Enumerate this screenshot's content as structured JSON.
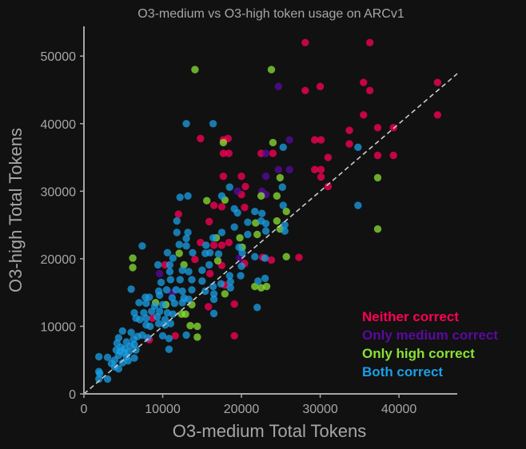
{
  "chart_data": {
    "type": "scatter",
    "title": "O3-medium vs O3-high token usage on ARCv1",
    "xlabel": "O3-medium Total Tokens",
    "ylabel": "O3-high Total Tokens",
    "xlim": [
      0,
      47400
    ],
    "ylim": [
      0,
      54400
    ],
    "xticks": [
      0,
      10000,
      20000,
      30000,
      40000
    ],
    "xtick_labels": [
      "0",
      "10000",
      "20000",
      "30000",
      "40000"
    ],
    "yticks": [
      0,
      10000,
      20000,
      30000,
      40000,
      50000
    ],
    "ytick_labels": [
      "0",
      "10000",
      "20000",
      "30000",
      "40000",
      "50000"
    ],
    "grid": false,
    "reference_line": {
      "type": "y=x",
      "style": "dashed",
      "color": "#cccccc"
    },
    "legend_position": "bottom-right",
    "series": [
      {
        "name": "Neither correct",
        "color": "#ff0055",
        "points": [
          [
            28100,
            52000
          ],
          [
            36300,
            52000
          ],
          [
            30000,
            45500
          ],
          [
            28100,
            44900
          ],
          [
            35500,
            46100
          ],
          [
            36300,
            44900
          ],
          [
            44900,
            46100
          ],
          [
            44900,
            41300
          ],
          [
            35500,
            41300
          ],
          [
            37300,
            39400
          ],
          [
            39300,
            39400
          ],
          [
            33700,
            39000
          ],
          [
            33700,
            37000
          ],
          [
            37300,
            35300
          ],
          [
            39300,
            35300
          ],
          [
            31000,
            35000
          ],
          [
            29300,
            37600
          ],
          [
            30100,
            37600
          ],
          [
            29300,
            33200
          ],
          [
            30100,
            33200
          ],
          [
            30100,
            32100
          ],
          [
            31000,
            30700
          ],
          [
            14800,
            37800
          ],
          [
            17700,
            37600
          ],
          [
            18300,
            37800
          ],
          [
            17700,
            35600
          ],
          [
            18400,
            35600
          ],
          [
            22500,
            35600
          ],
          [
            24000,
            35600
          ],
          [
            17700,
            32200
          ],
          [
            20000,
            32200
          ],
          [
            20500,
            30700
          ],
          [
            20000,
            29500
          ],
          [
            16500,
            27900
          ],
          [
            17500,
            27700
          ],
          [
            20400,
            27600
          ],
          [
            12000,
            26600
          ],
          [
            15900,
            25500
          ],
          [
            14800,
            22400
          ],
          [
            16500,
            22000
          ],
          [
            17500,
            22000
          ],
          [
            18400,
            22400
          ],
          [
            14100,
            19900
          ],
          [
            17500,
            19000
          ],
          [
            20400,
            19300
          ],
          [
            22700,
            20200
          ],
          [
            23800,
            19800
          ],
          [
            27300,
            20200
          ],
          [
            10300,
            19100
          ],
          [
            16000,
            17800
          ],
          [
            17900,
            16100
          ],
          [
            19100,
            13300
          ],
          [
            15800,
            12900
          ],
          [
            8700,
            11200
          ],
          [
            11600,
            8600
          ],
          [
            19100,
            8600
          ],
          [
            8300,
            8000
          ]
        ]
      },
      {
        "name": "Only medium correct",
        "color": "#5a0aa0",
        "points": [
          [
            24700,
            45500
          ],
          [
            26100,
            37600
          ],
          [
            23100,
            35600
          ],
          [
            24700,
            33200
          ],
          [
            26100,
            33200
          ],
          [
            23100,
            32200
          ],
          [
            22600,
            30000
          ],
          [
            23100,
            29500
          ],
          [
            19500,
            30000
          ],
          [
            19800,
            20100
          ],
          [
            9600,
            17800
          ],
          [
            11200,
            15000
          ]
        ]
      },
      {
        "name": "Only high correct",
        "color": "#8ae234",
        "points": [
          [
            14100,
            48000
          ],
          [
            23800,
            48000
          ],
          [
            17700,
            37200
          ],
          [
            24000,
            37200
          ],
          [
            24900,
            32000
          ],
          [
            37300,
            32000
          ],
          [
            24500,
            29300
          ],
          [
            22500,
            29300
          ],
          [
            17900,
            28700
          ],
          [
            15600,
            28600
          ],
          [
            25700,
            27000
          ],
          [
            24500,
            25600
          ],
          [
            21800,
            25300
          ],
          [
            24900,
            24400
          ],
          [
            37300,
            24400
          ],
          [
            19800,
            23100
          ],
          [
            16800,
            23100
          ],
          [
            22000,
            23600
          ],
          [
            25700,
            20300
          ],
          [
            6200,
            20100
          ],
          [
            6200,
            18700
          ],
          [
            12100,
            20800
          ],
          [
            17000,
            19700
          ],
          [
            21700,
            15900
          ],
          [
            22500,
            15700
          ],
          [
            23200,
            15900
          ],
          [
            17900,
            14800
          ],
          [
            13700,
            13200
          ],
          [
            10400,
            13200
          ],
          [
            12400,
            11800
          ],
          [
            12900,
            11800
          ],
          [
            13500,
            10100
          ],
          [
            14400,
            10000
          ],
          [
            14400,
            8400
          ],
          [
            9100,
            13500
          ],
          [
            12700,
            19100
          ],
          [
            20100,
            21700
          ]
        ]
      },
      {
        "name": "Both correct",
        "color": "#1a9fe6",
        "points": [
          [
            13000,
            40000
          ],
          [
            16400,
            40000
          ],
          [
            25300,
            36500
          ],
          [
            34800,
            36500
          ],
          [
            34800,
            27900
          ],
          [
            18500,
            30600
          ],
          [
            25200,
            30600
          ],
          [
            12200,
            29100
          ],
          [
            13200,
            29300
          ],
          [
            17500,
            29300
          ],
          [
            25300,
            27900
          ],
          [
            19100,
            27400
          ],
          [
            19500,
            26800
          ],
          [
            21700,
            27000
          ],
          [
            22600,
            26700
          ],
          [
            20800,
            25400
          ],
          [
            22500,
            25600
          ],
          [
            23100,
            25200
          ],
          [
            25500,
            25000
          ],
          [
            25500,
            24100
          ],
          [
            19100,
            24700
          ],
          [
            11800,
            25600
          ],
          [
            11800,
            23900
          ],
          [
            13200,
            23900
          ],
          [
            13000,
            23000
          ],
          [
            16400,
            23100
          ],
          [
            17500,
            23900
          ],
          [
            20800,
            23600
          ],
          [
            23100,
            24100
          ],
          [
            7400,
            21900
          ],
          [
            12100,
            22100
          ],
          [
            13000,
            21900
          ],
          [
            15500,
            22000
          ],
          [
            10600,
            20900
          ],
          [
            11300,
            20100
          ],
          [
            13800,
            20900
          ],
          [
            15400,
            20800
          ],
          [
            16000,
            20900
          ],
          [
            17100,
            20700
          ],
          [
            19700,
            21700
          ],
          [
            20100,
            20900
          ],
          [
            21700,
            20300
          ],
          [
            23000,
            20100
          ],
          [
            9400,
            19100
          ],
          [
            10900,
            19100
          ],
          [
            10900,
            18100
          ],
          [
            12500,
            18300
          ],
          [
            13300,
            18100
          ],
          [
            15000,
            18300
          ],
          [
            15900,
            19100
          ],
          [
            20000,
            18900
          ],
          [
            18500,
            17500
          ],
          [
            19900,
            17500
          ],
          [
            18600,
            16600
          ],
          [
            18600,
            15700
          ],
          [
            22100,
            16700
          ],
          [
            23000,
            17100
          ],
          [
            6000,
            15500
          ],
          [
            9800,
            16500
          ],
          [
            11000,
            16900
          ],
          [
            12200,
            16900
          ],
          [
            13700,
            16900
          ],
          [
            15000,
            16700
          ],
          [
            9500,
            15200
          ],
          [
            10500,
            15400
          ],
          [
            11700,
            15400
          ],
          [
            12500,
            15200
          ],
          [
            13700,
            15400
          ],
          [
            15400,
            15200
          ],
          [
            16400,
            15900
          ],
          [
            17400,
            16300
          ],
          [
            16500,
            14800
          ],
          [
            16500,
            14000
          ],
          [
            16500,
            11900
          ],
          [
            7800,
            14300
          ],
          [
            8300,
            14300
          ],
          [
            9600,
            14600
          ],
          [
            11200,
            14200
          ],
          [
            12700,
            14200
          ],
          [
            13300,
            14000
          ],
          [
            7000,
            13500
          ],
          [
            7900,
            13400
          ],
          [
            9000,
            13000
          ],
          [
            10000,
            13200
          ],
          [
            11500,
            13400
          ],
          [
            12500,
            13500
          ],
          [
            6400,
            12000
          ],
          [
            7600,
            12000
          ],
          [
            8600,
            12200
          ],
          [
            9600,
            12200
          ],
          [
            10600,
            12000
          ],
          [
            11300,
            11800
          ],
          [
            6600,
            11200
          ],
          [
            7100,
            11000
          ],
          [
            7900,
            11200
          ],
          [
            9300,
            11400
          ],
          [
            10300,
            11000
          ],
          [
            7900,
            10200
          ],
          [
            8400,
            10000
          ],
          [
            9500,
            10400
          ],
          [
            10300,
            10200
          ],
          [
            11000,
            10400
          ],
          [
            22000,
            12800
          ],
          [
            13000,
            8700
          ],
          [
            10000,
            8600
          ],
          [
            10800,
            8200
          ],
          [
            10800,
            6600
          ],
          [
            4900,
            9300
          ],
          [
            6000,
            9100
          ],
          [
            7400,
            8700
          ],
          [
            8100,
            8300
          ],
          [
            4400,
            8300
          ],
          [
            5400,
            7700
          ],
          [
            6300,
            8100
          ],
          [
            6800,
            8500
          ],
          [
            4200,
            7500
          ],
          [
            4700,
            6900
          ],
          [
            5200,
            6700
          ],
          [
            5900,
            7100
          ],
          [
            6400,
            7300
          ],
          [
            4100,
            6500
          ],
          [
            4600,
            6300
          ],
          [
            5100,
            6100
          ],
          [
            5700,
            6200
          ],
          [
            6600,
            6500
          ],
          [
            4400,
            5700
          ],
          [
            5400,
            5500
          ],
          [
            6400,
            5300
          ],
          [
            3900,
            5000
          ],
          [
            4900,
            4600
          ],
          [
            5600,
            4900
          ],
          [
            1900,
            5500
          ],
          [
            3000,
            5400
          ],
          [
            3500,
            4500
          ],
          [
            3900,
            4000
          ],
          [
            4400,
            3700
          ],
          [
            1900,
            3300
          ],
          [
            2000,
            3000
          ],
          [
            3000,
            2200
          ],
          [
            1900,
            2200
          ]
        ]
      }
    ]
  }
}
